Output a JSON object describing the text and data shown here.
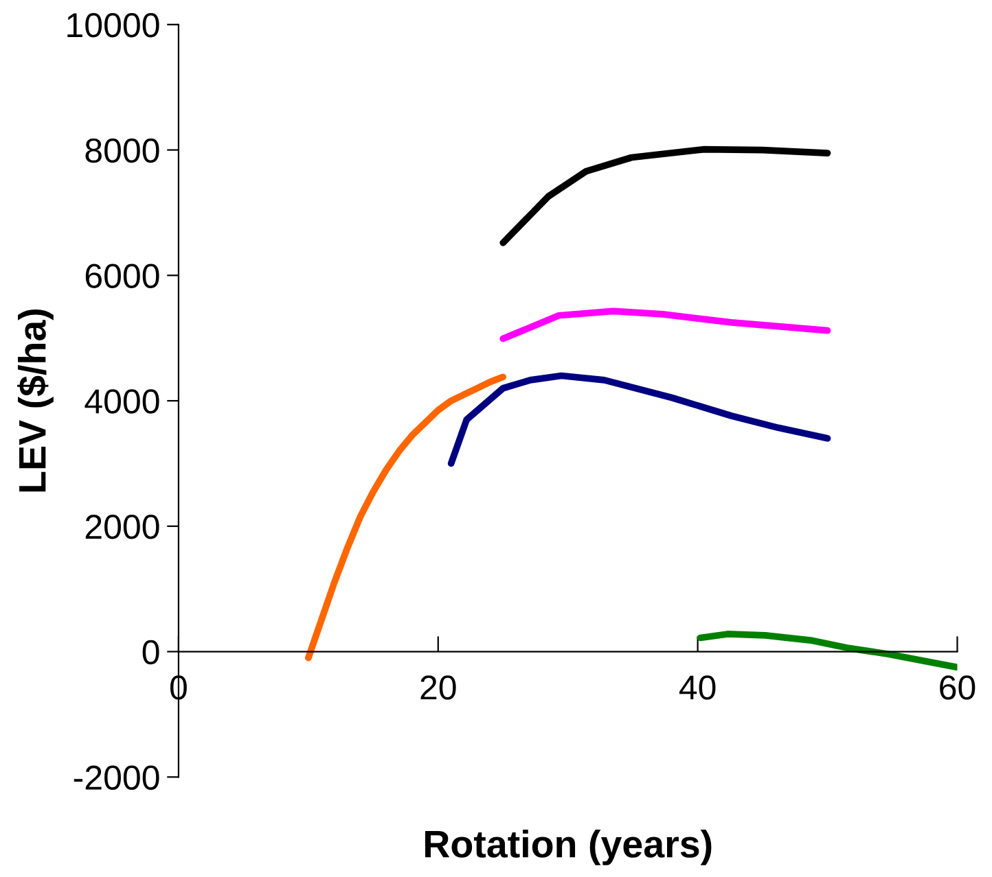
{
  "chart_data": {
    "type": "line",
    "xlabel": "Rotation (years)",
    "ylabel": "LEV ($/ha)",
    "xlim": [
      0,
      60
    ],
    "xticks": [
      0,
      20,
      40,
      60
    ],
    "ylim": [
      -2000,
      10000
    ],
    "yticks": [
      -2000,
      0,
      2000,
      4000,
      6000,
      8000,
      10000
    ],
    "grid": false,
    "marker": "none",
    "line_style": "solid",
    "series": [
      {
        "color": "#ff6600",
        "x": [
          10,
          11,
          12,
          13,
          14,
          15,
          16,
          17,
          18,
          19,
          20,
          21,
          22,
          23,
          24,
          25
        ],
        "values": [
          -100,
          500,
          1100,
          1650,
          2150,
          2550,
          2900,
          3200,
          3450,
          3650,
          3850,
          4000,
          4100,
          4200,
          4300,
          4380
        ]
      },
      {
        "color": "#000080",
        "x": [
          21,
          22.2,
          25,
          27.1,
          29.5,
          32.8,
          38,
          42.6,
          46.2,
          50
        ],
        "values": [
          3000,
          3700,
          4200,
          4330,
          4400,
          4330,
          4050,
          3760,
          3570,
          3400
        ]
      },
      {
        "color": "#000000",
        "x": [
          25,
          28.5,
          31.4,
          34.9,
          40.5,
          45,
          50
        ],
        "values": [
          6520,
          7260,
          7660,
          7880,
          8010,
          8000,
          7950
        ]
      },
      {
        "color": "#ff00ff",
        "x": [
          25,
          29.3,
          33.5,
          37.3,
          42.6,
          50
        ],
        "values": [
          4990,
          5360,
          5430,
          5380,
          5250,
          5120
        ]
      },
      {
        "color": "#008000",
        "x": [
          40.2,
          42.3,
          45.2,
          48.7,
          51.5,
          54.7,
          60
        ],
        "values": [
          220,
          280,
          260,
          180,
          60,
          -40,
          -250
        ]
      }
    ]
  }
}
